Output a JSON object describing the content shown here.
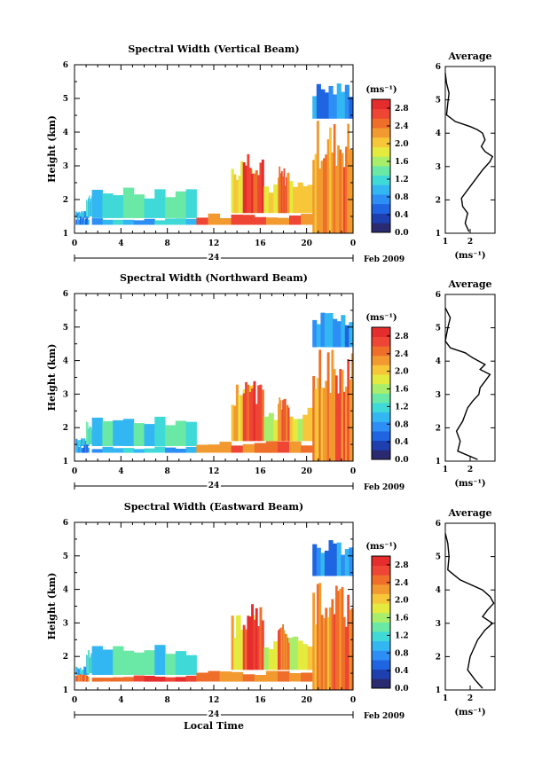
{
  "chart_data": [
    {
      "type": "heatmap",
      "title": "Spectral Width (Vertical Beam)",
      "ylabel": "Height (km)",
      "xlim": [
        0,
        24
      ],
      "ylim": [
        1,
        6
      ],
      "x_ticks": [
        "0",
        "4",
        "8",
        "12",
        "16",
        "20",
        "0"
      ],
      "y_ticks": [
        "1",
        "2",
        "3",
        "4",
        "5",
        "6"
      ],
      "date_day": "24",
      "date_label": "Feb 2009",
      "colorbar": {
        "unit": "(ms⁻¹)",
        "range": [
          0.0,
          3.0
        ],
        "ticks": [
          "2.8",
          "2.4",
          "2.0",
          "1.6",
          "1.2",
          "0.8",
          "0.4",
          "0.0"
        ]
      },
      "average_profile": {
        "title": "Average",
        "xlabel": "(ms⁻¹)",
        "xlim": [
          1,
          3
        ],
        "x_ticks": [
          "1",
          "2"
        ],
        "y_ticks": [
          "1",
          "2",
          "3",
          "4",
          "5",
          "6"
        ],
        "points": [
          [
            1.95,
            1.05
          ],
          [
            1.8,
            1.3
          ],
          [
            1.9,
            1.6
          ],
          [
            1.7,
            1.8
          ],
          [
            1.65,
            2.05
          ],
          [
            1.9,
            2.3
          ],
          [
            2.2,
            2.6
          ],
          [
            2.5,
            2.9
          ],
          [
            2.8,
            3.15
          ],
          [
            2.9,
            3.3
          ],
          [
            2.6,
            3.45
          ],
          [
            2.45,
            3.6
          ],
          [
            2.6,
            3.8
          ],
          [
            2.5,
            4.0
          ],
          [
            2.3,
            4.1
          ],
          [
            2.0,
            4.2
          ],
          [
            1.4,
            4.35
          ],
          [
            1.05,
            4.55
          ],
          [
            1.1,
            4.9
          ],
          [
            1.15,
            5.2
          ],
          [
            1.05,
            5.5
          ],
          [
            1.0,
            5.8
          ]
        ]
      }
    },
    {
      "type": "heatmap",
      "title": "Spectral Width (Northward Beam)",
      "ylabel": "Height (km)",
      "xlim": [
        0,
        24
      ],
      "ylim": [
        1,
        6
      ],
      "x_ticks": [
        "0",
        "4",
        "8",
        "12",
        "16",
        "20",
        "0"
      ],
      "y_ticks": [
        "1",
        "2",
        "3",
        "4",
        "5",
        "6"
      ],
      "date_day": "24",
      "date_label": "Feb 2009",
      "colorbar": {
        "unit": "(ms⁻¹)",
        "range": [
          0.0,
          3.0
        ],
        "ticks": [
          "2.8",
          "2.4",
          "2.0",
          "1.6",
          "1.2",
          "0.8",
          "0.4",
          "0.0"
        ]
      },
      "average_profile": {
        "title": "Average",
        "xlabel": "(ms⁻¹)",
        "xlim": [
          1,
          3
        ],
        "x_ticks": [
          "1",
          "2"
        ],
        "y_ticks": [
          "1",
          "2",
          "3",
          "4",
          "5",
          "6"
        ],
        "points": [
          [
            2.3,
            1.05
          ],
          [
            1.5,
            1.3
          ],
          [
            1.6,
            1.6
          ],
          [
            1.45,
            1.9
          ],
          [
            1.7,
            2.2
          ],
          [
            1.9,
            2.6
          ],
          [
            2.1,
            2.8
          ],
          [
            2.35,
            3.0
          ],
          [
            2.4,
            3.2
          ],
          [
            2.6,
            3.4
          ],
          [
            2.8,
            3.6
          ],
          [
            2.4,
            3.75
          ],
          [
            2.6,
            3.9
          ],
          [
            2.1,
            4.1
          ],
          [
            1.8,
            4.25
          ],
          [
            1.2,
            4.4
          ],
          [
            1.0,
            4.6
          ],
          [
            1.1,
            5.0
          ],
          [
            1.2,
            5.3
          ],
          [
            1.0,
            5.6
          ]
        ]
      }
    },
    {
      "type": "heatmap",
      "title": "Spectral Width (Eastward Beam)",
      "ylabel": "Height (km)",
      "xlabel": "Local Time",
      "xlim": [
        0,
        24
      ],
      "ylim": [
        1,
        6
      ],
      "x_ticks": [
        "0",
        "4",
        "8",
        "12",
        "16",
        "20",
        "0"
      ],
      "y_ticks": [
        "1",
        "2",
        "3",
        "4",
        "5",
        "6"
      ],
      "date_day": "24",
      "date_label": "Feb 2009",
      "colorbar": {
        "unit": "(ms⁻¹)",
        "range": [
          0.0,
          3.0
        ],
        "ticks": [
          "2.8",
          "2.4",
          "2.0",
          "1.6",
          "1.2",
          "0.8",
          "0.4",
          "0.0"
        ]
      },
      "average_profile": {
        "title": "Average",
        "xlabel": "(ms⁻¹)",
        "xlim": [
          1,
          3
        ],
        "x_ticks": [
          "1",
          "2"
        ],
        "y_ticks": [
          "1",
          "2",
          "3",
          "4",
          "5",
          "6"
        ],
        "points": [
          [
            2.5,
            1.05
          ],
          [
            2.2,
            1.3
          ],
          [
            1.9,
            1.6
          ],
          [
            2.0,
            2.0
          ],
          [
            2.3,
            2.5
          ],
          [
            2.6,
            2.8
          ],
          [
            2.9,
            3.0
          ],
          [
            2.5,
            3.2
          ],
          [
            2.7,
            3.4
          ],
          [
            2.95,
            3.6
          ],
          [
            2.8,
            3.8
          ],
          [
            2.5,
            4.0
          ],
          [
            1.6,
            4.3
          ],
          [
            1.1,
            4.6
          ],
          [
            1.15,
            5.0
          ],
          [
            1.1,
            5.4
          ],
          [
            1.0,
            5.7
          ]
        ]
      }
    }
  ]
}
